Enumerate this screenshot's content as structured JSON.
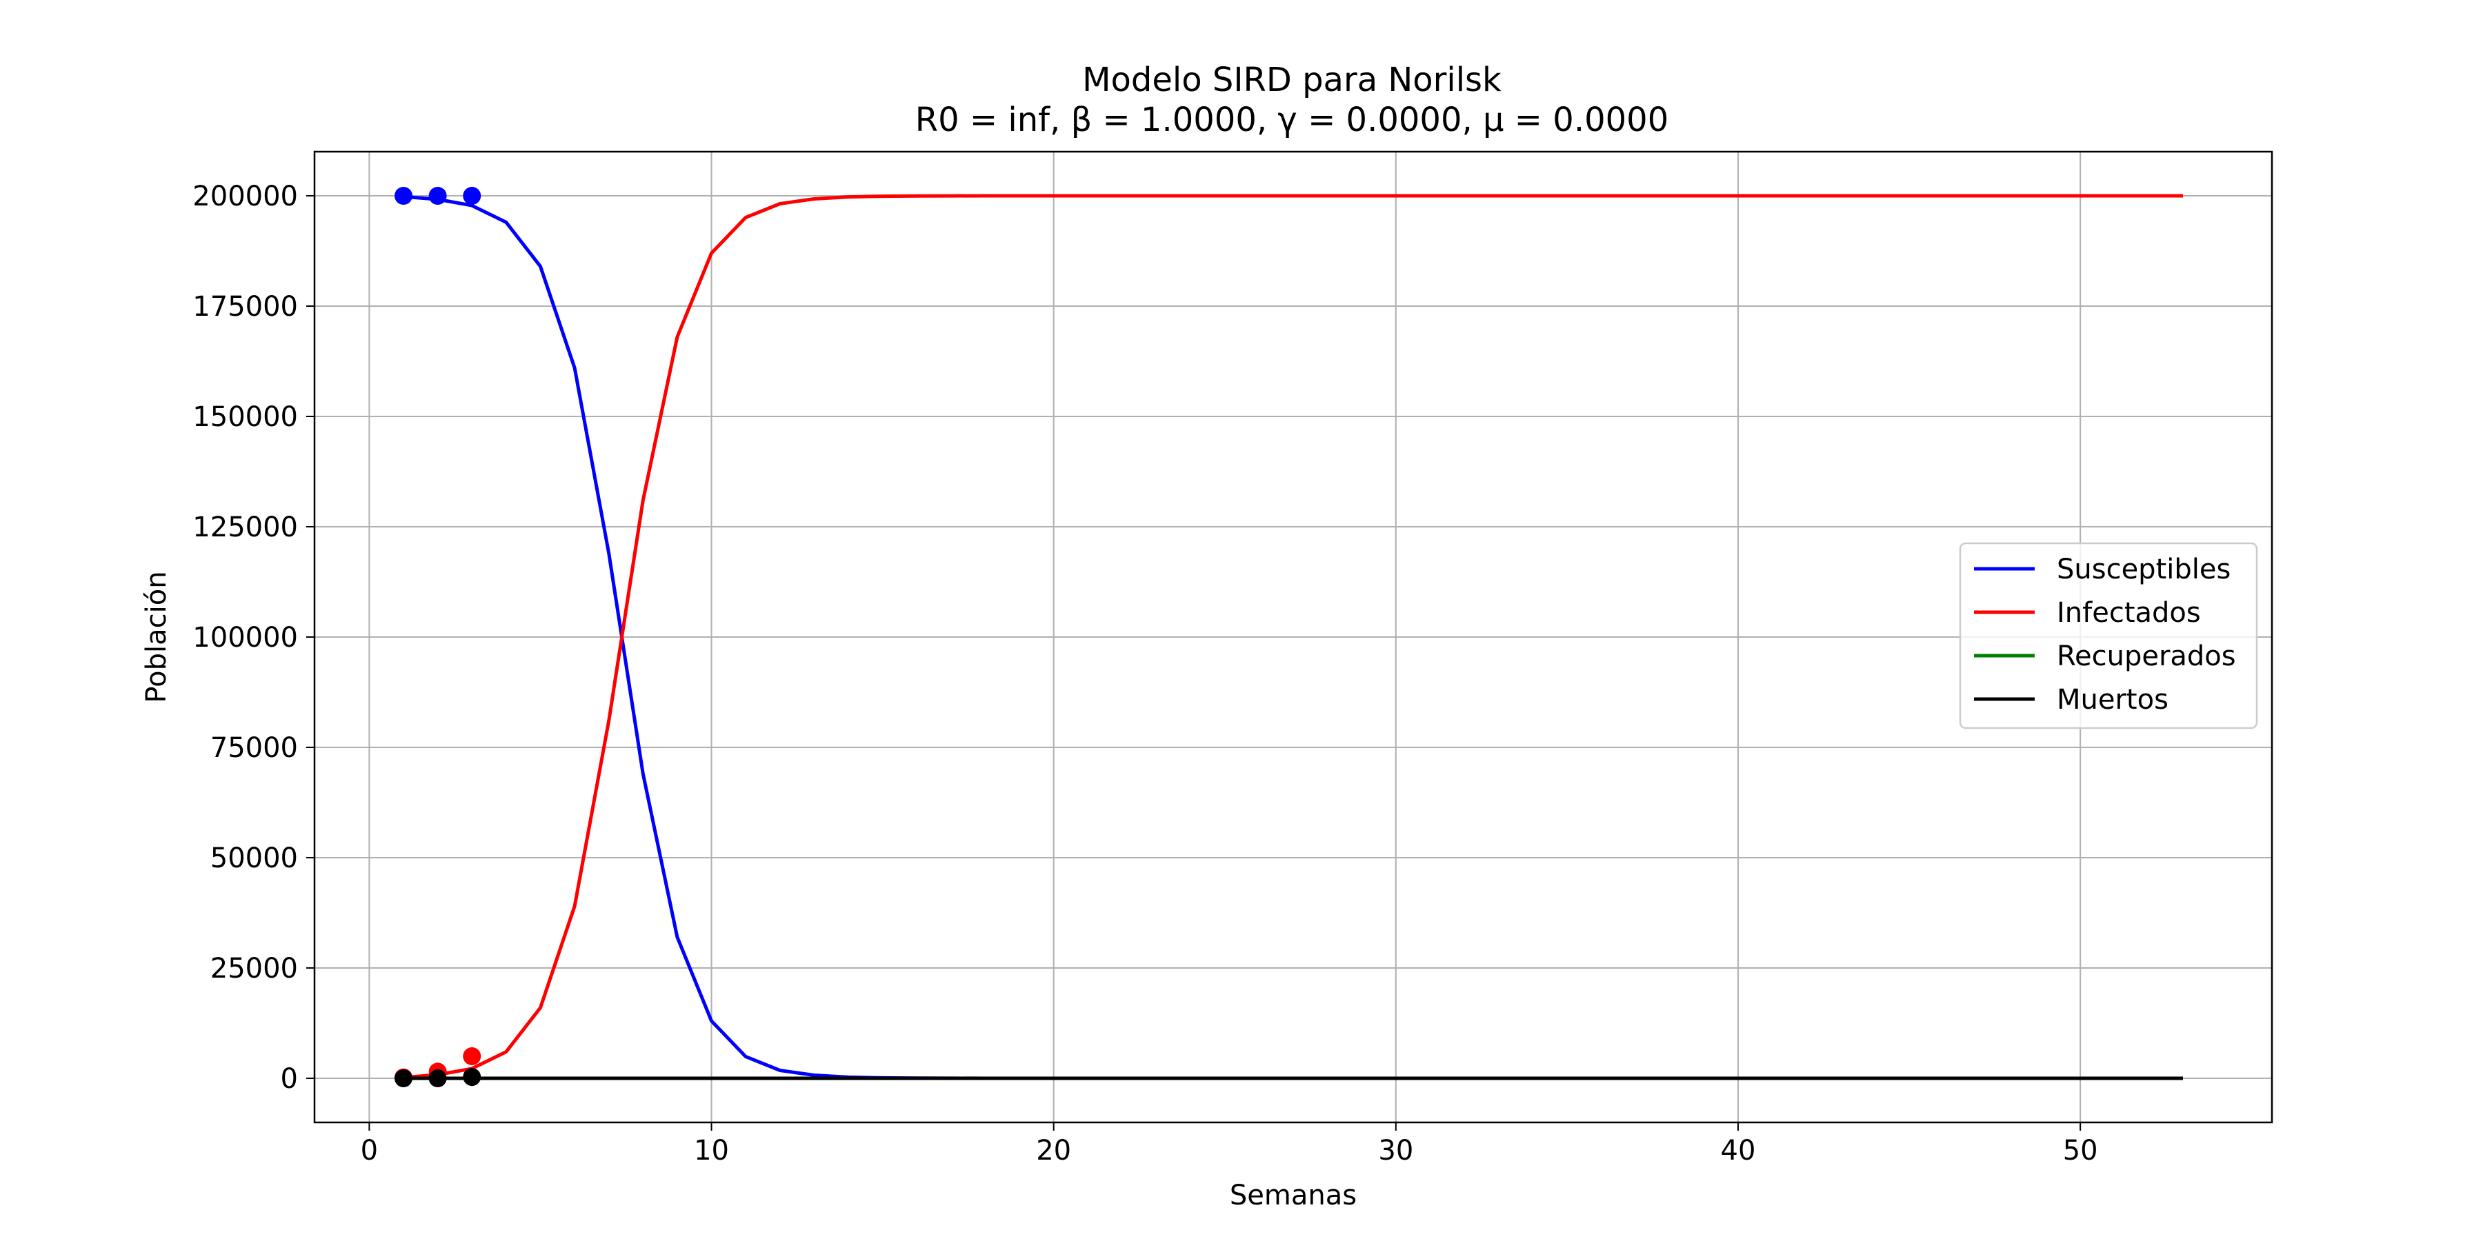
{
  "chart_data": {
    "type": "line",
    "title": "Modelo SIRD para Norilsk",
    "subtitle": "R0 = inf, β = 1.0000, γ = 0.0000, μ = 0.0000",
    "xlabel": "Semanas",
    "ylabel": "Población",
    "xlim": [
      -1.6,
      55.6
    ],
    "ylim": [
      -10000,
      210000
    ],
    "xticks": [
      0,
      10,
      20,
      30,
      40,
      50
    ],
    "xtick_labels": [
      "0",
      "10",
      "20",
      "30",
      "40",
      "50"
    ],
    "yticks": [
      0,
      25000,
      50000,
      75000,
      100000,
      125000,
      150000,
      175000,
      200000
    ],
    "ytick_labels": [
      "0",
      "25000",
      "50000",
      "75000",
      "100000",
      "125000",
      "150000",
      "175000",
      "200000"
    ],
    "grid": true,
    "legend_position": "center-right",
    "x": [
      1,
      2,
      3,
      4,
      5,
      6,
      7,
      8,
      9,
      10,
      11,
      12,
      13,
      14,
      15,
      16,
      17,
      18,
      19,
      20,
      21,
      22,
      23,
      24,
      25,
      26,
      27,
      28,
      29,
      30,
      31,
      32,
      33,
      34,
      35,
      36,
      37,
      38,
      39,
      40,
      41,
      42,
      43,
      44,
      45,
      46,
      47,
      48,
      49,
      50,
      51,
      52,
      53
    ],
    "series": [
      {
        "name": "Susceptibles",
        "color": "#0000ff",
        "values": [
          199800,
          199200,
          197800,
          194000,
          184000,
          161000,
          119000,
          69000,
          32000,
          13000,
          4900,
          1800,
          700,
          250,
          100,
          40,
          15,
          5,
          2,
          1,
          0,
          0,
          0,
          0,
          0,
          0,
          0,
          0,
          0,
          0,
          0,
          0,
          0,
          0,
          0,
          0,
          0,
          0,
          0,
          0,
          0,
          0,
          0,
          0,
          0,
          0,
          0,
          0,
          0,
          0,
          0,
          0,
          0
        ]
      },
      {
        "name": "Infectados",
        "color": "#ff0000",
        "values": [
          200,
          800,
          2200,
          6000,
          16000,
          39000,
          81000,
          131000,
          168000,
          187000,
          195100,
          198200,
          199300,
          199750,
          199900,
          199960,
          199985,
          199995,
          199998,
          199999,
          200000,
          200000,
          200000,
          200000,
          200000,
          200000,
          200000,
          200000,
          200000,
          200000,
          200000,
          200000,
          200000,
          200000,
          200000,
          200000,
          200000,
          200000,
          200000,
          200000,
          200000,
          200000,
          200000,
          200000,
          200000,
          200000,
          200000,
          200000,
          200000,
          200000,
          200000,
          200000,
          200000
        ]
      },
      {
        "name": "Recuperados",
        "color": "#008000",
        "values": [
          0,
          0,
          0,
          0,
          0,
          0,
          0,
          0,
          0,
          0,
          0,
          0,
          0,
          0,
          0,
          0,
          0,
          0,
          0,
          0,
          0,
          0,
          0,
          0,
          0,
          0,
          0,
          0,
          0,
          0,
          0,
          0,
          0,
          0,
          0,
          0,
          0,
          0,
          0,
          0,
          0,
          0,
          0,
          0,
          0,
          0,
          0,
          0,
          0,
          0,
          0,
          0,
          0
        ]
      },
      {
        "name": "Muertos",
        "color": "#000000",
        "values": [
          0,
          0,
          0,
          0,
          0,
          0,
          0,
          0,
          0,
          0,
          0,
          0,
          0,
          0,
          0,
          0,
          0,
          0,
          0,
          0,
          0,
          0,
          0,
          0,
          0,
          0,
          0,
          0,
          0,
          0,
          0,
          0,
          0,
          0,
          0,
          0,
          0,
          0,
          0,
          0,
          0,
          0,
          0,
          0,
          0,
          0,
          0,
          0,
          0,
          0,
          0,
          0,
          0
        ]
      }
    ],
    "observed_points": [
      {
        "color": "#0000ff",
        "points": [
          [
            1,
            200000
          ],
          [
            2,
            200000
          ],
          [
            3,
            200000
          ]
        ]
      },
      {
        "color": "#ff0000",
        "points": [
          [
            1,
            200
          ],
          [
            2,
            1500
          ],
          [
            3,
            5000
          ]
        ]
      },
      {
        "color": "#000000",
        "points": [
          [
            1,
            0
          ],
          [
            2,
            0
          ],
          [
            3,
            300
          ]
        ]
      }
    ]
  }
}
